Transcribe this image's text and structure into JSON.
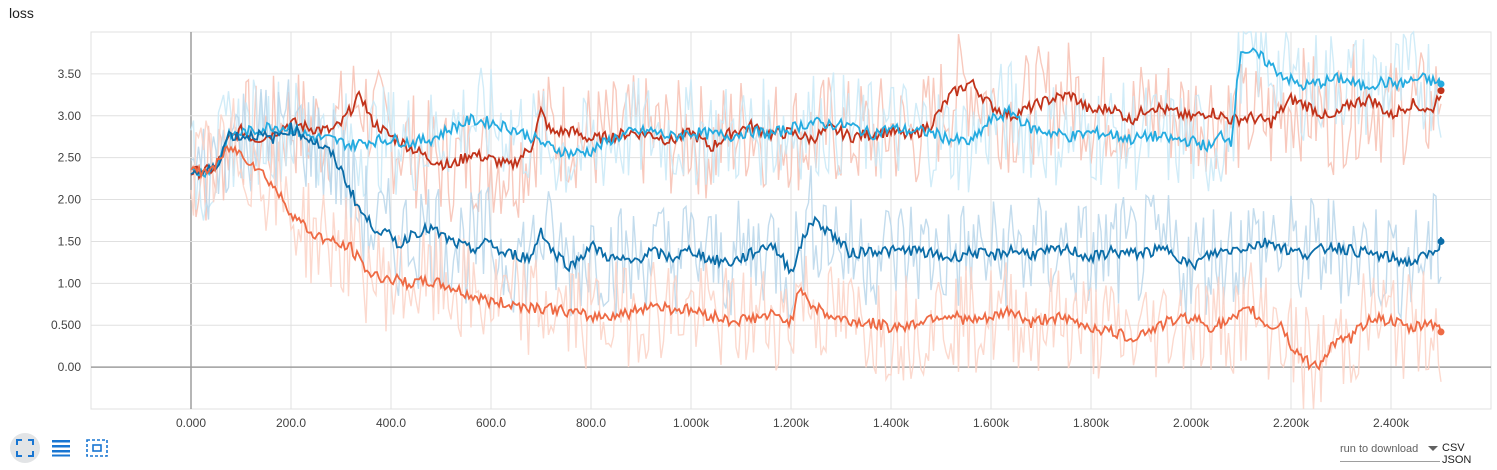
{
  "title": "loss",
  "toolbar": {
    "icons": [
      "fullscreen-icon",
      "list-icon",
      "fit-domain-icon"
    ]
  },
  "download": {
    "label": "run to download",
    "csv": "CSV",
    "json": "JSON"
  },
  "colors": {
    "dark_red": "#c1331b",
    "orange": "#ee6a44",
    "light_blue": "#25abe0",
    "dark_blue": "#0b6da8",
    "grid": "#e0e0e0",
    "axis": "#9e9e9e"
  },
  "chart_data": {
    "type": "line",
    "title": "loss",
    "xlim": [
      -200,
      2600
    ],
    "ylim": [
      -0.5,
      4.0
    ],
    "x_ticks": [
      "0.000",
      "200.0",
      "400.0",
      "600.0",
      "800.0",
      "1.000k",
      "1.200k",
      "1.400k",
      "1.600k",
      "1.800k",
      "2.000k",
      "2.200k",
      "2.400k"
    ],
    "x_tick_values": [
      0,
      200,
      400,
      600,
      800,
      1000,
      1200,
      1400,
      1600,
      1800,
      2000,
      2200,
      2400
    ],
    "y_ticks": [
      "0.00",
      "0.500",
      "1.00",
      "1.50",
      "2.00",
      "2.50",
      "3.00",
      "3.50"
    ],
    "y_tick_values": [
      0,
      0.5,
      1.0,
      1.5,
      2.0,
      2.5,
      3.0,
      3.5
    ],
    "grid": true,
    "series": [
      {
        "color": "#c1331b",
        "raw_color": "#f7c0b1",
        "x": [
          0,
          25,
          50,
          75,
          100,
          130,
          160,
          200,
          240,
          280,
          300,
          320,
          340,
          360,
          400,
          440,
          480,
          520,
          560,
          600,
          640,
          680,
          700,
          720,
          760,
          800,
          840,
          880,
          920,
          960,
          1000,
          1040,
          1080,
          1120,
          1160,
          1200,
          1240,
          1280,
          1320,
          1360,
          1400,
          1440,
          1480,
          1520,
          1560,
          1600,
          1640,
          1680,
          1720,
          1760,
          1800,
          1840,
          1880,
          1920,
          1960,
          2000,
          2040,
          2080,
          2120,
          2160,
          2200,
          2240,
          2280,
          2320,
          2360,
          2400,
          2440,
          2480,
          2500
        ],
        "values": [
          2.33,
          2.33,
          2.38,
          2.72,
          2.82,
          2.72,
          2.78,
          2.92,
          2.85,
          2.82,
          2.9,
          3.08,
          3.25,
          2.95,
          2.75,
          2.62,
          2.48,
          2.4,
          2.55,
          2.48,
          2.4,
          2.62,
          3.05,
          2.8,
          2.82,
          2.72,
          2.75,
          2.8,
          2.78,
          2.7,
          2.8,
          2.62,
          2.8,
          2.88,
          2.78,
          2.8,
          2.72,
          2.85,
          2.75,
          2.78,
          2.82,
          2.75,
          2.9,
          3.25,
          3.4,
          3.12,
          3.0,
          3.1,
          3.2,
          3.25,
          3.05,
          3.1,
          2.95,
          3.12,
          3.05,
          2.98,
          3.05,
          2.95,
          2.98,
          2.92,
          3.2,
          3.1,
          2.95,
          3.15,
          3.2,
          3.0,
          3.15,
          3.05,
          3.3
        ]
      },
      {
        "color": "#25abe0",
        "raw_color": "#c9e9f7",
        "x": [
          0,
          25,
          50,
          75,
          100,
          130,
          160,
          200,
          240,
          280,
          320,
          360,
          400,
          440,
          480,
          520,
          560,
          600,
          640,
          680,
          720,
          760,
          800,
          840,
          880,
          920,
          960,
          1000,
          1040,
          1080,
          1120,
          1160,
          1200,
          1240,
          1280,
          1320,
          1360,
          1400,
          1440,
          1480,
          1520,
          1560,
          1600,
          1640,
          1680,
          1720,
          1760,
          1800,
          1840,
          1880,
          1920,
          1960,
          2000,
          2040,
          2060,
          2080,
          2100,
          2140,
          2180,
          2220,
          2260,
          2300,
          2340,
          2380,
          2420,
          2460,
          2500
        ],
        "values": [
          2.33,
          2.33,
          2.4,
          2.75,
          2.8,
          2.82,
          2.88,
          2.85,
          2.75,
          2.72,
          2.65,
          2.7,
          2.72,
          2.68,
          2.72,
          2.85,
          2.95,
          2.92,
          2.85,
          2.75,
          2.62,
          2.55,
          2.58,
          2.72,
          2.8,
          2.82,
          2.75,
          2.8,
          2.78,
          2.76,
          2.82,
          2.78,
          2.85,
          2.92,
          2.9,
          2.88,
          2.78,
          2.85,
          2.82,
          2.8,
          2.72,
          2.68,
          2.95,
          3.05,
          2.85,
          2.8,
          2.75,
          2.8,
          2.78,
          2.72,
          2.76,
          2.72,
          2.7,
          2.62,
          2.78,
          2.7,
          3.8,
          3.7,
          3.5,
          3.35,
          3.4,
          3.45,
          3.35,
          3.4,
          3.38,
          3.45,
          3.38
        ]
      },
      {
        "color": "#0b6da8",
        "raw_color": "#b8d6ea",
        "x": [
          0,
          25,
          50,
          75,
          100,
          130,
          160,
          200,
          240,
          280,
          300,
          320,
          340,
          360,
          400,
          420,
          440,
          480,
          520,
          560,
          600,
          620,
          640,
          680,
          700,
          720,
          760,
          800,
          840,
          880,
          920,
          960,
          1000,
          1040,
          1080,
          1120,
          1160,
          1200,
          1240,
          1260,
          1280,
          1320,
          1360,
          1400,
          1440,
          1480,
          1520,
          1560,
          1600,
          1640,
          1680,
          1720,
          1760,
          1800,
          1840,
          1880,
          1920,
          1960,
          2000,
          2040,
          2080,
          2120,
          2160,
          2200,
          2240,
          2280,
          2320,
          2360,
          2400,
          2440,
          2480,
          2500
        ],
        "values": [
          2.33,
          2.33,
          2.38,
          2.78,
          2.75,
          2.78,
          2.72,
          2.85,
          2.72,
          2.55,
          2.35,
          2.1,
          1.85,
          1.7,
          1.55,
          1.45,
          1.6,
          1.65,
          1.5,
          1.4,
          1.5,
          1.35,
          1.35,
          1.3,
          1.65,
          1.4,
          1.2,
          1.45,
          1.3,
          1.25,
          1.38,
          1.3,
          1.4,
          1.28,
          1.25,
          1.35,
          1.48,
          1.15,
          1.75,
          1.7,
          1.6,
          1.35,
          1.4,
          1.38,
          1.4,
          1.35,
          1.3,
          1.38,
          1.32,
          1.4,
          1.35,
          1.38,
          1.4,
          1.3,
          1.38,
          1.35,
          1.38,
          1.4,
          1.2,
          1.35,
          1.4,
          1.45,
          1.5,
          1.38,
          1.35,
          1.45,
          1.4,
          1.35,
          1.3,
          1.25,
          1.35,
          1.5
        ]
      },
      {
        "color": "#ee6a44",
        "raw_color": "#fcd2c6",
        "x": [
          0,
          25,
          50,
          75,
          100,
          130,
          160,
          200,
          240,
          280,
          300,
          320,
          340,
          360,
          400,
          440,
          480,
          520,
          560,
          600,
          640,
          680,
          720,
          760,
          800,
          840,
          880,
          920,
          960,
          1000,
          1040,
          1080,
          1120,
          1160,
          1200,
          1220,
          1240,
          1280,
          1320,
          1360,
          1400,
          1440,
          1480,
          1520,
          1560,
          1600,
          1640,
          1680,
          1720,
          1760,
          1800,
          1840,
          1880,
          1920,
          1960,
          2000,
          2040,
          2080,
          2120,
          2140,
          2160,
          2180,
          2200,
          2240,
          2260,
          2280,
          2320,
          2360,
          2400,
          2440,
          2480,
          2500
        ],
        "values": [
          2.33,
          2.33,
          2.4,
          2.62,
          2.55,
          2.4,
          2.2,
          1.85,
          1.6,
          1.5,
          1.45,
          1.42,
          1.25,
          1.1,
          1.05,
          1.0,
          1.02,
          0.95,
          0.85,
          0.78,
          0.75,
          0.72,
          0.7,
          0.65,
          0.6,
          0.62,
          0.65,
          0.75,
          0.7,
          0.68,
          0.62,
          0.55,
          0.58,
          0.62,
          0.55,
          0.98,
          0.75,
          0.6,
          0.55,
          0.52,
          0.48,
          0.5,
          0.6,
          0.62,
          0.55,
          0.58,
          0.68,
          0.52,
          0.6,
          0.55,
          0.48,
          0.42,
          0.35,
          0.45,
          0.55,
          0.6,
          0.48,
          0.55,
          0.7,
          0.55,
          0.48,
          0.52,
          0.25,
          0.02,
          0.05,
          0.25,
          0.35,
          0.6,
          0.55,
          0.45,
          0.55,
          0.42
        ]
      }
    ]
  }
}
